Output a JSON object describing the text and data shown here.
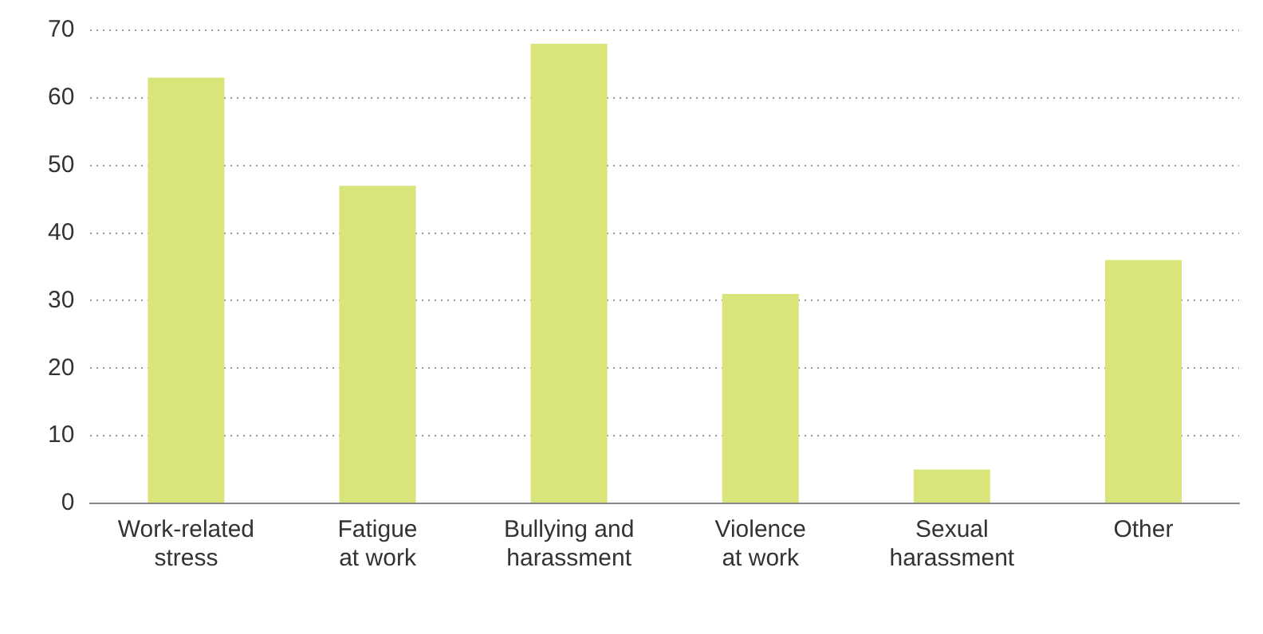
{
  "chart_data": {
    "type": "bar",
    "categories": [
      "Work-related\nstress",
      "Fatigue\nat work",
      "Bullying and\nharassment",
      "Violence\nat work",
      "Sexual\nharassment",
      "Other"
    ],
    "values": [
      63,
      47,
      68,
      31,
      5,
      36
    ],
    "color": "#d9e57a",
    "ylim": [
      0,
      70
    ],
    "yticks": [
      0,
      10,
      20,
      30,
      40,
      50,
      60,
      70
    ],
    "grid": "y"
  }
}
